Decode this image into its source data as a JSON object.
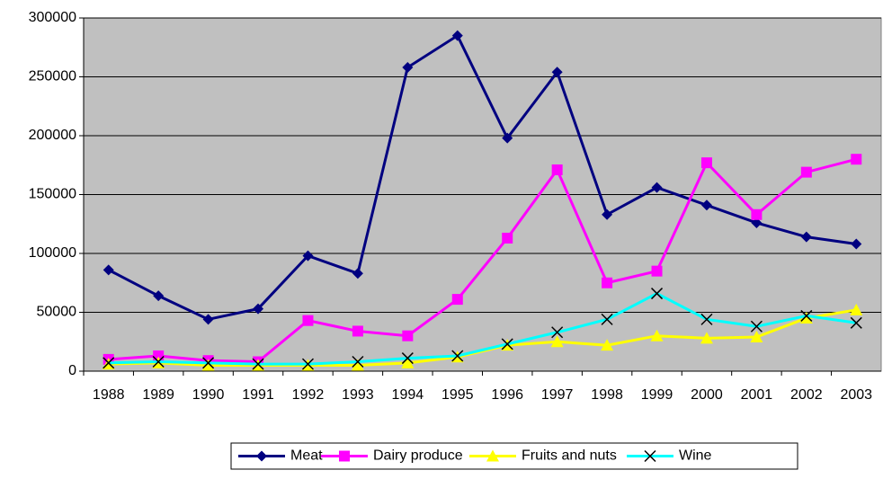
{
  "chart_data": {
    "type": "line",
    "categories": [
      "1988",
      "1989",
      "1990",
      "1991",
      "1992",
      "1993",
      "1994",
      "1995",
      "1996",
      "1997",
      "1998",
      "1999",
      "2000",
      "2001",
      "2002",
      "2003"
    ],
    "series": [
      {
        "name": "Meat",
        "color": "#000080",
        "marker": "diamond",
        "values": [
          86000,
          64000,
          44000,
          53000,
          98000,
          83000,
          258000,
          285000,
          198000,
          254000,
          133000,
          156000,
          141000,
          126000,
          114000,
          108000
        ]
      },
      {
        "name": "Dairy produce",
        "color": "#ff00ff",
        "marker": "square",
        "values": [
          10000,
          13000,
          9000,
          8000,
          43000,
          34000,
          30000,
          61000,
          113000,
          171000,
          75000,
          85000,
          177000,
          133000,
          169000,
          180000
        ]
      },
      {
        "name": "Fruits and nuts",
        "color": "#ffff00",
        "marker": "triangle",
        "values": [
          6000,
          7000,
          5000,
          5000,
          5000,
          5000,
          7000,
          12000,
          22000,
          25000,
          22000,
          30000,
          28000,
          29000,
          45000,
          52000
        ]
      },
      {
        "name": "Wine",
        "color": "#00ffff",
        "marker": "x",
        "values": [
          7000,
          8000,
          7000,
          6000,
          6000,
          8000,
          11000,
          13000,
          23000,
          33000,
          44000,
          66000,
          44000,
          38000,
          47000,
          41000
        ]
      }
    ],
    "ylim": [
      0,
      300000
    ],
    "yticks": [
      0,
      50000,
      100000,
      150000,
      200000,
      250000,
      300000
    ],
    "grid": true,
    "plot_background": "#c0c0c0",
    "legend": "bottom"
  }
}
